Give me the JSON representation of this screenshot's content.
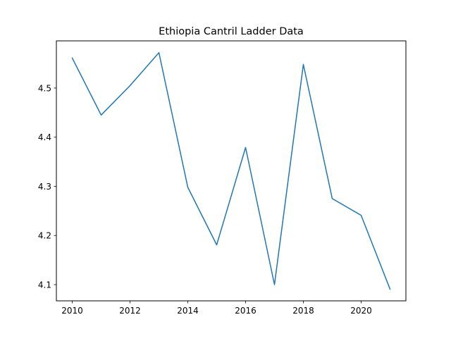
{
  "chart_data": {
    "type": "line",
    "title": "Ethiopia Cantril Ladder Data",
    "xlabel": "",
    "ylabel": "",
    "x": [
      2010,
      2011,
      2012,
      2013,
      2014,
      2015,
      2016,
      2017,
      2018,
      2019,
      2020,
      2021
    ],
    "series": [
      {
        "values": [
          4.561,
          4.445,
          4.505,
          4.572,
          4.298,
          4.181,
          4.379,
          4.1,
          4.548,
          4.275,
          4.241,
          4.091
        ],
        "color": "#1f77b4"
      }
    ],
    "xlim": [
      2009.45,
      2021.55
    ],
    "ylim": [
      4.067,
      4.596
    ],
    "xticks": [
      2010,
      2012,
      2014,
      2016,
      2018,
      2020
    ],
    "yticks": [
      4.1,
      4.2,
      4.3,
      4.4,
      4.5
    ],
    "ytick_labels": [
      "4.1",
      "4.2",
      "4.3",
      "4.4",
      "4.5"
    ],
    "grid": false,
    "legend": "none"
  }
}
